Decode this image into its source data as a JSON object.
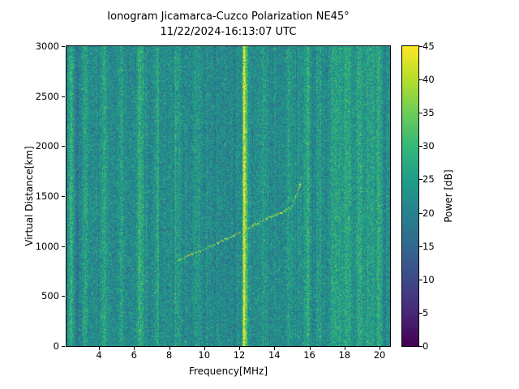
{
  "chart_data": {
    "type": "heatmap",
    "title": "Ionogram Jicamarca-Cuzco Polarization NE45°",
    "subtitle": "11/22/2024-16:13:07 UTC",
    "xlabel": "Frequency[MHz]",
    "ylabel": "Virtual Distance[km]",
    "xlim": [
      2.15,
      20.6
    ],
    "ylim": [
      0,
      3000
    ],
    "xticks": [
      4,
      6,
      8,
      10,
      12,
      14,
      16,
      18,
      20
    ],
    "yticks": [
      0,
      500,
      1000,
      1500,
      2000,
      2500,
      3000
    ],
    "grid": false,
    "legend": "none",
    "colorbar": {
      "label": "Power [dB]",
      "min": 0,
      "max": 45,
      "ticks": [
        0,
        5,
        10,
        15,
        20,
        25,
        30,
        35,
        40,
        45
      ],
      "colormap": "viridis"
    },
    "noise": {
      "mean_db": 21.5,
      "std_db": 3.8
    },
    "interference_lines": [
      {
        "freq_mhz": 2.42,
        "boost_db": 8,
        "width_mhz": 0.1
      },
      {
        "freq_mhz": 2.75,
        "boost_db": -4,
        "width_mhz": 0.08
      },
      {
        "freq_mhz": 3.22,
        "boost_db": 5,
        "width_mhz": 0.1
      },
      {
        "freq_mhz": 4.28,
        "boost_db": 5.5,
        "width_mhz": 0.12
      },
      {
        "freq_mhz": 5.3,
        "boost_db": 4.5,
        "width_mhz": 0.1
      },
      {
        "freq_mhz": 6.35,
        "boost_db": 6.5,
        "width_mhz": 0.14
      },
      {
        "freq_mhz": 7.32,
        "boost_db": 4.5,
        "width_mhz": 0.1
      },
      {
        "freq_mhz": 8.45,
        "boost_db": 5,
        "width_mhz": 0.12
      },
      {
        "freq_mhz": 9.55,
        "boost_db": 3.5,
        "width_mhz": 0.1
      },
      {
        "freq_mhz": 12.28,
        "boost_db": 26,
        "width_mhz": 0.05
      },
      {
        "freq_mhz": 12.4,
        "boost_db": 10,
        "width_mhz": 0.07
      },
      {
        "freq_mhz": 13.42,
        "boost_db": 5,
        "width_mhz": 0.1
      },
      {
        "freq_mhz": 14.85,
        "boost_db": 3.5,
        "width_mhz": 0.1
      },
      {
        "freq_mhz": 15.9,
        "boost_db": 5.5,
        "width_mhz": 0.12
      },
      {
        "freq_mhz": 16.6,
        "boost_db": 3.5,
        "width_mhz": 0.1
      },
      {
        "freq_mhz": 17.55,
        "boost_db": 5,
        "width_mhz": 0.25
      },
      {
        "freq_mhz": 18.2,
        "boost_db": 4.5,
        "width_mhz": 0.15
      },
      {
        "freq_mhz": 18.85,
        "boost_db": 6,
        "width_mhz": 0.15
      },
      {
        "freq_mhz": 19.5,
        "boost_db": 4,
        "width_mhz": 0.18
      },
      {
        "freq_mhz": 19.95,
        "boost_db": 5.5,
        "width_mhz": 0.1
      }
    ],
    "echo_trace": {
      "main": [
        [
          8.45,
          860
        ],
        [
          9.0,
          905
        ],
        [
          9.6,
          945
        ],
        [
          10.2,
          990
        ],
        [
          10.8,
          1040
        ],
        [
          11.4,
          1090
        ],
        [
          12.0,
          1140
        ],
        [
          12.6,
          1195
        ],
        [
          13.2,
          1250
        ],
        [
          13.8,
          1300
        ],
        [
          14.4,
          1345
        ],
        [
          15.0,
          1395
        ]
      ],
      "upper_branch": [
        [
          15.0,
          1430
        ],
        [
          15.2,
          1500
        ],
        [
          15.45,
          1620
        ],
        [
          15.55,
          1700
        ]
      ]
    }
  }
}
